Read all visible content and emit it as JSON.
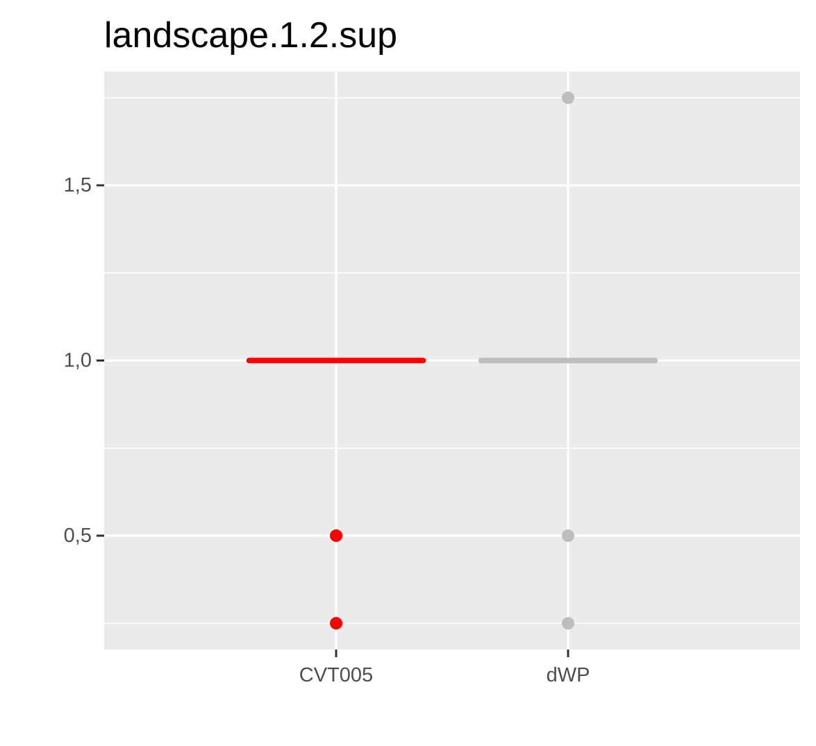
{
  "chart_data": {
    "type": "scatter",
    "title": "landscape.1.2.sup",
    "xlabel": "",
    "ylabel": "",
    "categories": [
      "CVT005",
      "dWP"
    ],
    "ylim": [
      0.175,
      1.825
    ],
    "y_ticks": [
      0.5,
      1.0,
      1.5
    ],
    "y_tick_labels": [
      "0,5",
      "1,0",
      "1,5"
    ],
    "y_minor_ticks": [
      0.25,
      0.75,
      1.25,
      1.75
    ],
    "grid": true,
    "legend": "none",
    "series": [
      {
        "category": "CVT005",
        "color": "#ff0000",
        "median": 1.0,
        "points": [
          0.5,
          0.25
        ]
      },
      {
        "category": "dWP",
        "color": "#bebebe",
        "median": 1.0,
        "points": [
          1.75,
          0.5,
          0.25
        ]
      }
    ],
    "colors": {
      "panel": "#ebebeb",
      "grid": "#ffffff",
      "tick_text": "#4d4d4d",
      "tick_mark": "#333333"
    }
  }
}
